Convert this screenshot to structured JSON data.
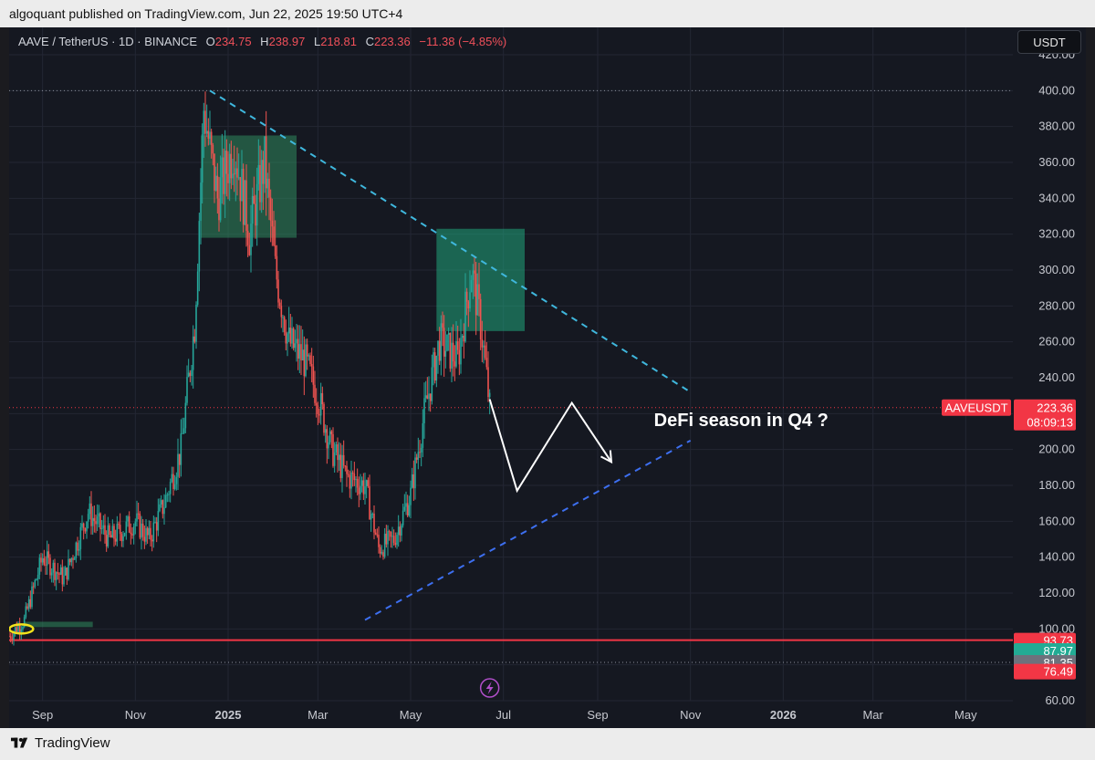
{
  "header": {
    "text": "algoquant published on TradingView.com, Jun 22, 2025 19:50 UTC+4"
  },
  "footer": {
    "brand": "TradingView"
  },
  "currency_button": "USDT",
  "legend": {
    "symbol": "AAVE / TetherUS · 1D · BINANCE",
    "open_key": "O",
    "open": "234.75",
    "high_key": "H",
    "high": "238.97",
    "low_key": "L",
    "low": "218.81",
    "close_key": "C",
    "close": "223.36",
    "change": "−11.38 (−4.85%)"
  },
  "colors": {
    "background": "#151821",
    "up": "#26a69a",
    "down": "#ef5350",
    "grid": "#232633",
    "axis_text": "#c6c8cf",
    "trend_upper": "#3fb7dd",
    "trend_lower": "#3d6ff0",
    "support": "#f23645",
    "zone": "#2f8a5e"
  },
  "chart_data": {
    "type": "candlestick",
    "symbol": "AAVEUSDT",
    "y_axis": {
      "range": [
        60,
        420
      ],
      "ticks": [
        "60.00",
        "80.00",
        "100.00",
        "120.00",
        "140.00",
        "160.00",
        "180.00",
        "200.00",
        "220.00",
        "240.00",
        "260.00",
        "280.00",
        "300.00",
        "320.00",
        "340.00",
        "360.00",
        "380.00",
        "400.00",
        "420.00"
      ]
    },
    "x_axis": {
      "range": [
        "2024-08-10",
        "2026-06-01"
      ],
      "ticks": [
        {
          "date": "2024-09-01",
          "label": "Sep",
          "bold": false
        },
        {
          "date": "2024-11-01",
          "label": "Nov",
          "bold": false
        },
        {
          "date": "2025-01-01",
          "label": "2025",
          "bold": true
        },
        {
          "date": "2025-03-01",
          "label": "Mar",
          "bold": false
        },
        {
          "date": "2025-05-01",
          "label": "May",
          "bold": false
        },
        {
          "date": "2025-07-01",
          "label": "Jul",
          "bold": false
        },
        {
          "date": "2025-09-01",
          "label": "Sep",
          "bold": false
        },
        {
          "date": "2025-11-01",
          "label": "Nov",
          "bold": false
        },
        {
          "date": "2026-01-01",
          "label": "2026",
          "bold": true
        },
        {
          "date": "2026-03-01",
          "label": "Mar",
          "bold": false
        },
        {
          "date": "2026-05-01",
          "label": "May",
          "bold": false
        }
      ]
    },
    "price_path": [
      [
        "2024-08-10",
        96
      ],
      [
        "2024-08-20",
        105
      ],
      [
        "2024-09-01",
        140
      ],
      [
        "2024-09-15",
        128
      ],
      [
        "2024-10-01",
        165
      ],
      [
        "2024-10-15",
        150
      ],
      [
        "2024-11-01",
        160
      ],
      [
        "2024-11-10",
        150
      ],
      [
        "2024-11-20",
        170
      ],
      [
        "2024-12-01",
        200
      ],
      [
        "2024-12-10",
        270
      ],
      [
        "2024-12-16",
        390
      ],
      [
        "2024-12-25",
        340
      ],
      [
        "2025-01-05",
        370
      ],
      [
        "2025-01-15",
        320
      ],
      [
        "2025-01-25",
        360
      ],
      [
        "2025-02-01",
        300
      ],
      [
        "2025-02-10",
        260
      ],
      [
        "2025-02-20",
        250
      ],
      [
        "2025-03-01",
        230
      ],
      [
        "2025-03-10",
        200
      ],
      [
        "2025-03-20",
        185
      ],
      [
        "2025-04-01",
        180
      ],
      [
        "2025-04-10",
        145
      ],
      [
        "2025-04-20",
        150
      ],
      [
        "2025-05-01",
        175
      ],
      [
        "2025-05-10",
        220
      ],
      [
        "2025-05-20",
        260
      ],
      [
        "2025-06-01",
        250
      ],
      [
        "2025-06-10",
        300
      ],
      [
        "2025-06-16",
        270
      ],
      [
        "2025-06-20",
        240
      ],
      [
        "2025-06-22",
        223.36
      ]
    ],
    "price_labels": [
      {
        "value": 223.36,
        "text": "223.36",
        "sub": "08:09:13",
        "tag": "AAVEUSDT",
        "color": "#f23645"
      },
      {
        "value": 93.73,
        "text": "93.73",
        "color": "#f23645"
      },
      {
        "value": 87.97,
        "text": "87.97",
        "color": "#22ab94"
      },
      {
        "value": 81.35,
        "text": "81.35",
        "color": "#6d717c"
      },
      {
        "value": 76.49,
        "text": "76.49",
        "color": "#f23645"
      }
    ],
    "horizontal_lines": [
      {
        "value": 400,
        "style": "dotted"
      },
      {
        "value": 223.36,
        "style": "dotted-red"
      },
      {
        "value": 93.73,
        "style": "solid-red"
      },
      {
        "value": 81.35,
        "style": "dotted"
      }
    ],
    "trendlines": [
      {
        "from": [
          "2024-12-20",
          400
        ],
        "to": [
          "2025-11-01",
          232
        ],
        "style": "dashed",
        "color": "#3fb7dd"
      },
      {
        "from": [
          "2025-04-01",
          105
        ],
        "to": [
          "2025-11-01",
          205
        ],
        "style": "dashed",
        "color": "#3d6ff0"
      }
    ],
    "zones": [
      {
        "x": [
          "2024-12-14",
          "2025-02-15"
        ],
        "y": [
          318,
          375
        ],
        "color": "#2f8a5e"
      },
      {
        "x": [
          "2025-05-18",
          "2025-07-15"
        ],
        "y": [
          266,
          323
        ],
        "color": "#21a57c"
      },
      {
        "x": [
          "2024-08-20",
          "2024-10-04"
        ],
        "y": [
          101,
          104
        ],
        "color": "#2f8a5e"
      }
    ],
    "projection": [
      [
        "2025-06-22",
        228
      ],
      [
        "2025-07-10",
        177
      ],
      [
        "2025-08-15",
        226
      ],
      [
        "2025-09-10",
        193
      ]
    ],
    "annotation": {
      "text": "DeFi season in Q4 ?",
      "date": "2025-11-01",
      "value": 215
    }
  }
}
